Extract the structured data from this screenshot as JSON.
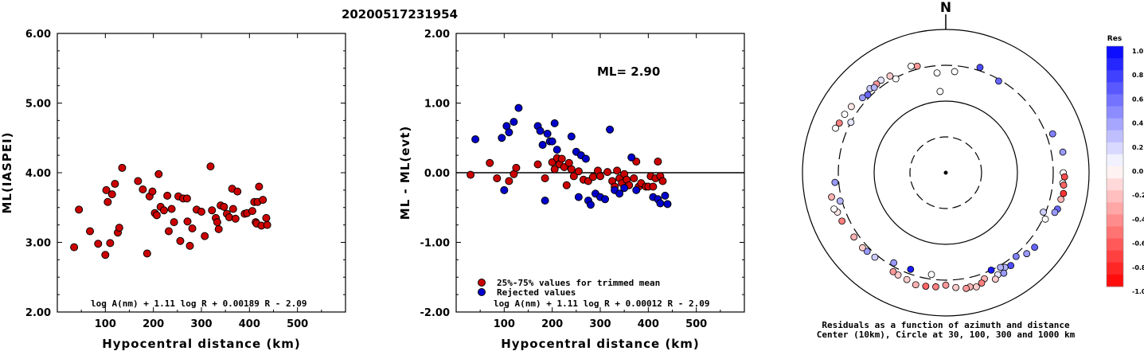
{
  "figure_title": "20200517231954",
  "chart_data": [
    {
      "type": "scatter",
      "xlabel": "Hypocentral distance (km)",
      "ylabel": "ML(IASPEI)",
      "xlim": [
        0,
        600
      ],
      "ylim": [
        2.0,
        6.0
      ],
      "xticks": [
        "100",
        "200",
        "300",
        "400",
        "500"
      ],
      "yticks": [
        "2.00",
        "3.00",
        "4.00",
        "5.00",
        "6.00"
      ],
      "formula": "log A(nm) + 1.11 log R + 0.00189 R - 2.09",
      "point_color": "#cc0000",
      "points": [
        [
          35,
          2.93
        ],
        [
          45,
          3.47
        ],
        [
          68,
          3.16
        ],
        [
          85,
          2.98
        ],
        [
          100,
          2.82
        ],
        [
          102,
          3.75
        ],
        [
          105,
          3.58
        ],
        [
          110,
          2.99
        ],
        [
          114,
          3.69
        ],
        [
          120,
          3.84
        ],
        [
          126,
          3.14
        ],
        [
          129,
          3.21
        ],
        [
          135,
          4.07
        ],
        [
          168,
          3.88
        ],
        [
          178,
          3.76
        ],
        [
          187,
          2.84
        ],
        [
          192,
          3.66
        ],
        [
          198,
          3.73
        ],
        [
          203,
          3.42
        ],
        [
          207,
          3.39
        ],
        [
          211,
          3.98
        ],
        [
          215,
          3.51
        ],
        [
          222,
          3.46
        ],
        [
          229,
          3.67
        ],
        [
          232,
          3.16
        ],
        [
          238,
          3.48
        ],
        [
          243,
          3.29
        ],
        [
          252,
          3.66
        ],
        [
          256,
          3.02
        ],
        [
          262,
          3.63
        ],
        [
          270,
          3.63
        ],
        [
          271,
          3.3
        ],
        [
          276,
          2.95
        ],
        [
          281,
          3.2
        ],
        [
          290,
          3.47
        ],
        [
          300,
          3.44
        ],
        [
          307,
          3.09
        ],
        [
          319,
          4.09
        ],
        [
          322,
          3.46
        ],
        [
          330,
          3.35
        ],
        [
          333,
          3.29
        ],
        [
          336,
          3.19
        ],
        [
          340,
          3.53
        ],
        [
          347,
          3.51
        ],
        [
          353,
          3.41
        ],
        [
          358,
          3.36
        ],
        [
          364,
          3.77
        ],
        [
          366,
          3.48
        ],
        [
          371,
          3.34
        ],
        [
          375,
          3.73
        ],
        [
          390,
          3.41
        ],
        [
          395,
          3.42
        ],
        [
          406,
          3.45
        ],
        [
          410,
          3.58
        ],
        [
          413,
          3.29
        ],
        [
          415,
          3.27
        ],
        [
          417,
          3.58
        ],
        [
          420,
          3.8
        ],
        [
          425,
          3.24
        ],
        [
          428,
          3.61
        ],
        [
          435,
          3.35
        ],
        [
          437,
          3.25
        ]
      ]
    },
    {
      "type": "scatter",
      "xlabel": "Hypocentral distance (km)",
      "ylabel": "ML - ML(evt)",
      "xlim": [
        0,
        600
      ],
      "ylim": [
        -2.0,
        2.0
      ],
      "xticks": [
        "100",
        "200",
        "300",
        "400",
        "500"
      ],
      "yticks": [
        "-2.00",
        "-1.00",
        "0.00",
        "1.00",
        "2.00"
      ],
      "reference_line": 0.0,
      "annotation": "ML= 2.90",
      "formula": "log A(nm) + 1.11 log R + 0.00012 R - 2.09",
      "series": [
        {
          "name": "25%-75% values for trimmed mean",
          "color": "#cc0000",
          "points": [
            [
              30,
              -0.03
            ],
            [
              70,
              0.14
            ],
            [
              85,
              -0.08
            ],
            [
              110,
              -0.12
            ],
            [
              120,
              -0.02
            ],
            [
              125,
              0.07
            ],
            [
              170,
              0.12
            ],
            [
              185,
              -0.08
            ],
            [
              200,
              0.15
            ],
            [
              205,
              0.05
            ],
            [
              210,
              0.21
            ],
            [
              215,
              0.12
            ],
            [
              220,
              0.2
            ],
            [
              225,
              0.08
            ],
            [
              230,
              -0.18
            ],
            [
              235,
              0.14
            ],
            [
              240,
              0.05
            ],
            [
              245,
              -0.05
            ],
            [
              255,
              0.02
            ],
            [
              265,
              -0.1
            ],
            [
              275,
              -0.12
            ],
            [
              285,
              -0.06
            ],
            [
              295,
              0.03
            ],
            [
              300,
              -0.05
            ],
            [
              315,
              0.01
            ],
            [
              325,
              -0.12
            ],
            [
              330,
              -0.2
            ],
            [
              335,
              0.03
            ],
            [
              340,
              -0.08
            ],
            [
              345,
              -0.15
            ],
            [
              350,
              -0.02
            ],
            [
              355,
              -0.1
            ],
            [
              360,
              -0.18
            ],
            [
              370,
              -0.08
            ],
            [
              375,
              0.16
            ],
            [
              380,
              -0.2
            ],
            [
              385,
              -0.15
            ],
            [
              395,
              -0.2
            ],
            [
              400,
              -0.2
            ],
            [
              405,
              -0.05
            ],
            [
              410,
              -0.2
            ],
            [
              415,
              -0.08
            ],
            [
              420,
              0.16
            ],
            [
              425,
              -0.05
            ],
            [
              430,
              -0.12
            ]
          ]
        },
        {
          "name": "Rejected values",
          "color": "#0000cc",
          "points": [
            [
              40,
              0.48
            ],
            [
              95,
              0.5
            ],
            [
              100,
              -0.25
            ],
            [
              105,
              0.67
            ],
            [
              110,
              0.58
            ],
            [
              120,
              0.73
            ],
            [
              130,
              0.93
            ],
            [
              170,
              0.67
            ],
            [
              175,
              0.6
            ],
            [
              180,
              0.4
            ],
            [
              185,
              -0.4
            ],
            [
              190,
              0.56
            ],
            [
              195,
              0.45
            ],
            [
              200,
              0.45
            ],
            [
              205,
              0.71
            ],
            [
              210,
              0.33
            ],
            [
              240,
              0.52
            ],
            [
              250,
              0.3
            ],
            [
              255,
              -0.35
            ],
            [
              260,
              0.25
            ],
            [
              270,
              0.2
            ],
            [
              275,
              -0.4
            ],
            [
              280,
              -0.46
            ],
            [
              290,
              -0.3
            ],
            [
              300,
              -0.35
            ],
            [
              310,
              -0.38
            ],
            [
              320,
              0.62
            ],
            [
              330,
              -0.25
            ],
            [
              340,
              -0.3
            ],
            [
              350,
              -0.22
            ],
            [
              365,
              0.22
            ],
            [
              375,
              -0.25
            ],
            [
              410,
              -0.35
            ],
            [
              420,
              -0.38
            ],
            [
              425,
              -0.44
            ],
            [
              435,
              -0.33
            ],
            [
              440,
              -0.45
            ]
          ]
        }
      ]
    },
    {
      "type": "polar-scatter",
      "north_label": "N",
      "caption_line1": "Residuals as a function of azimuth and distance",
      "caption_line2": "Center (10km), Circle at 30, 100, 300 and 1000 km",
      "colorbar_title": "Res",
      "colorbar_ticks": [
        "1.0",
        "0.8",
        "0.6",
        "0.4",
        "0.2",
        "0.0",
        "-0.2",
        "-0.4",
        "-0.6",
        "-0.8",
        "-1.0"
      ],
      "rings_km": [
        30,
        100,
        300,
        1000
      ],
      "points_az_dist_res": [
        [
          -35,
          360,
          0.1
        ],
        [
          -38,
          355,
          -0.4
        ],
        [
          -42,
          365,
          0.2
        ],
        [
          -40,
          340,
          0.3
        ],
        [
          -45,
          330,
          0.6
        ],
        [
          -48,
          350,
          0.4
        ],
        [
          -30,
          345,
          -0.2
        ],
        [
          -28,
          290,
          0.0
        ],
        [
          -55,
          390,
          -0.1
        ],
        [
          -60,
          410,
          0.0
        ],
        [
          -65,
          420,
          -0.5
        ],
        [
          -68,
          440,
          0.0
        ],
        [
          -62,
          300,
          0.1
        ],
        [
          -15,
          330,
          -0.4
        ],
        [
          -18,
          350,
          0.0
        ],
        [
          -5,
          240,
          0.0
        ],
        [
          -4,
          135,
          0.0
        ],
        [
          5,
          250,
          0.0
        ],
        [
          18,
          335,
          0.7
        ],
        [
          30,
          285,
          0.6
        ],
        [
          70,
          370,
          0.5
        ],
        [
          80,
          440,
          0.4
        ],
        [
          90,
          420,
          0.0
        ],
        [
          92,
          440,
          -0.7
        ],
        [
          95,
          420,
          0.0
        ],
        [
          96,
          435,
          -0.6
        ],
        [
          100,
          450,
          -0.8
        ],
        [
          103,
          430,
          -0.3
        ],
        [
          108,
          420,
          0.6
        ],
        [
          110,
          400,
          0.4
        ],
        [
          112,
          280,
          0.2
        ],
        [
          115,
          325,
          0.0
        ],
        [
          130,
          400,
          0.6
        ],
        [
          135,
          380,
          0.4
        ],
        [
          140,
          320,
          0.5
        ],
        [
          145,
          365,
          0.7
        ],
        [
          148,
          345,
          0.3
        ],
        [
          150,
          400,
          0.4
        ],
        [
          150,
          320,
          0.3
        ],
        [
          153,
          380,
          0.1
        ],
        [
          155,
          420,
          -0.2
        ],
        [
          155,
          300,
          0.9
        ],
        [
          160,
          360,
          -0.3
        ],
        [
          162,
          400,
          -0.5
        ],
        [
          165,
          430,
          -0.2
        ],
        [
          168,
          410,
          -0.3
        ],
        [
          170,
          420,
          -0.4
        ],
        [
          175,
          390,
          -0.2
        ],
        [
          180,
          355,
          -0.4
        ],
        [
          185,
          380,
          -0.5
        ],
        [
          188,
          260,
          0.0
        ],
        [
          190,
          390,
          -0.6
        ],
        [
          195,
          400,
          -0.3
        ],
        [
          200,
          370,
          -0.2
        ],
        [
          205,
          360,
          -0.2
        ],
        [
          208,
          350,
          -0.4
        ],
        [
          200,
          260,
          0.9
        ],
        [
          210,
          270,
          0.4
        ],
        [
          220,
          330,
          0.2
        ],
        [
          225,
          340,
          0.4
        ],
        [
          228,
          350,
          -0.2
        ],
        [
          235,
          350,
          -0.3
        ],
        [
          245,
          380,
          -0.5
        ],
        [
          250,
          390,
          -0.1
        ],
        [
          255,
          320,
          0.3
        ],
        [
          265,
          340,
          0.4
        ],
        [
          252,
          420,
          0.0
        ],
        [
          258,
          410,
          -0.3
        ]
      ]
    }
  ]
}
